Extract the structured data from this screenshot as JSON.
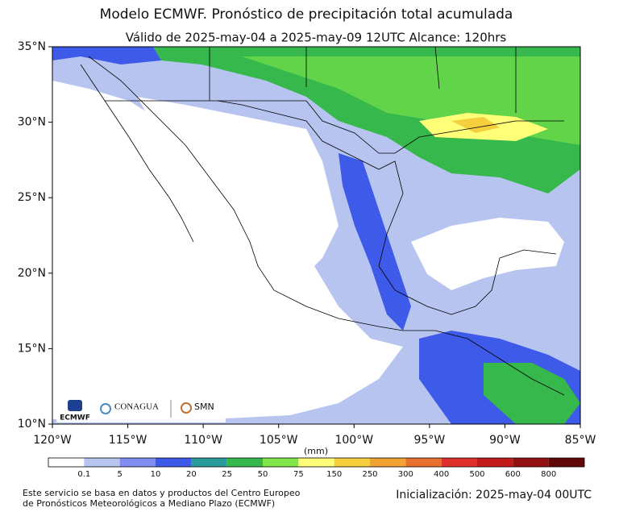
{
  "title": "Modelo ECMWF. Pronóstico de precipitación total acumulada",
  "subtitle": "Válido de 2025-may-04 a 2025-may-09 12UTC   Alcance: 120hrs",
  "map": {
    "lonlim": [
      -120,
      -85
    ],
    "latlim": [
      10,
      35
    ],
    "lonticks": [
      {
        "value": -120,
        "label": "120°W"
      },
      {
        "value": -115,
        "label": "115°W"
      },
      {
        "value": -110,
        "label": "110°W"
      },
      {
        "value": -105,
        "label": "105°W"
      },
      {
        "value": -100,
        "label": "100°W"
      },
      {
        "value": -95,
        "label": "95°W"
      },
      {
        "value": -90,
        "label": "90°W"
      },
      {
        "value": -85,
        "label": "85°W"
      }
    ],
    "latticks": [
      {
        "value": 35,
        "label": "35°N"
      },
      {
        "value": 30,
        "label": "30°N"
      },
      {
        "value": 25,
        "label": "25°N"
      },
      {
        "value": 20,
        "label": "20°N"
      },
      {
        "value": 15,
        "label": "15°N"
      },
      {
        "value": 10,
        "label": "10°N"
      }
    ]
  },
  "colorbar": {
    "unit": "(mm)",
    "labels": [
      "0.1",
      "5",
      "10",
      "20",
      "25",
      "50",
      "75",
      "150",
      "250",
      "300",
      "400",
      "500",
      "600",
      "800"
    ],
    "colors": [
      "#ffffff",
      "#b8c4f0",
      "#7f8df0",
      "#3d5ae8",
      "#2a9a9a",
      "#36b84c",
      "#80e64a",
      "#ffff78",
      "#f6cf3e",
      "#f0a232",
      "#e8702e",
      "#e0302e",
      "#c21a1a",
      "#921010",
      "#600808"
    ]
  },
  "logos": {
    "ecmwf": "ECMWF",
    "conagua": "CONAGUA",
    "smn": "SMN"
  },
  "footer": {
    "left": [
      "Este servicio se basa en datos y productos del Centro Europeo",
      "de Pronósticos Meteorológicos a Mediano Plazo (ECMWF)"
    ],
    "right": "Inicialización: 2025-may-04 00UTC"
  }
}
